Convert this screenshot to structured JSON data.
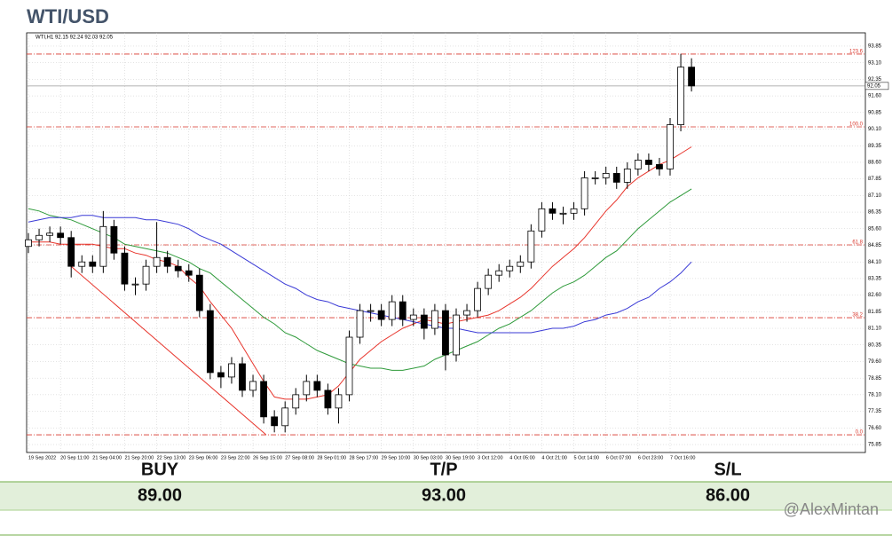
{
  "chart_data": {
    "type": "candlestick",
    "title": "WTI/USD",
    "subtitle": "WTI,H1  92.15 92.24 92.03 92.05",
    "categories": [
      "19 Sep 2022",
      null,
      null,
      "20 Sep 11:00",
      null,
      null,
      "21 Sep 04:00",
      null,
      null,
      "21 Sep 20:00",
      null,
      null,
      "22 Sep 13:00",
      null,
      null,
      "23 Sep 06:00",
      null,
      null,
      "23 Sep 22:00",
      null,
      null,
      "26 Sep 15:00",
      null,
      null,
      "27 Sep 08:00",
      null,
      null,
      "28 Sep 01:00",
      null,
      null,
      "28 Sep 17:00",
      null,
      null,
      "29 Sep 10:00",
      null,
      null,
      "30 Sep 03:00",
      null,
      null,
      "30 Sep 19:00",
      null,
      null,
      "3 Oct 12:00",
      null,
      null,
      "4 Oct 05:00",
      null,
      null,
      "4 Oct 21:00",
      null,
      null,
      "5 Oct 14:00",
      null,
      null,
      "6 Oct 07:00",
      null,
      null,
      "6 Oct 23:00",
      null,
      null,
      "7 Oct 16:00",
      null,
      null
    ],
    "open": [
      84.8,
      85.1,
      85.3,
      85.4,
      85.2,
      83.9,
      84.1,
      83.9,
      85.7,
      84.5,
      83.1,
      83.1,
      83.9,
      84.3,
      83.9,
      83.7,
      83.5,
      81.9,
      79.1,
      78.9,
      79.5,
      78.3,
      78.7,
      77.1,
      76.7,
      77.5,
      78.1,
      78.7,
      78.3,
      77.5,
      78.1,
      80.7,
      81.9,
      81.9,
      81.5,
      82.3,
      81.5,
      81.7,
      81.1,
      81.9,
      79.9,
      81.7,
      81.9,
      82.9,
      83.5,
      83.7,
      83.9,
      84.1,
      85.5,
      86.5,
      86.3,
      86.3,
      86.5,
      87.9,
      87.9,
      88.1,
      87.7,
      88.3,
      88.7,
      88.5,
      88.3,
      90.3,
      92.9
    ],
    "high": [
      85.4,
      85.6,
      85.7,
      85.7,
      85.5,
      84.4,
      84.4,
      86.4,
      86.0,
      84.8,
      83.4,
      84.2,
      85.9,
      84.6,
      84.2,
      84.0,
      83.8,
      82.2,
      79.4,
      79.8,
      79.8,
      79.0,
      79.0,
      77.4,
      77.8,
      78.4,
      79.0,
      79.0,
      78.6,
      78.4,
      81.0,
      82.2,
      82.2,
      82.2,
      82.6,
      82.6,
      82.0,
      82.0,
      82.2,
      82.2,
      82.0,
      82.2,
      83.2,
      83.8,
      84.0,
      84.2,
      84.4,
      85.8,
      86.8,
      86.8,
      86.6,
      86.8,
      88.2,
      88.2,
      88.4,
      88.4,
      88.6,
      89.0,
      89.0,
      88.8,
      90.6,
      93.5,
      93.3
    ],
    "low": [
      84.5,
      84.8,
      85.0,
      84.9,
      83.4,
      83.6,
      83.6,
      83.6,
      84.2,
      82.8,
      82.6,
      82.8,
      83.6,
      83.6,
      83.4,
      83.2,
      81.6,
      78.8,
      78.4,
      78.6,
      78.0,
      78.0,
      76.8,
      76.4,
      76.4,
      77.2,
      77.8,
      78.0,
      77.2,
      76.8,
      77.8,
      80.4,
      81.4,
      81.2,
      81.2,
      81.2,
      81.2,
      80.6,
      80.8,
      79.2,
      79.6,
      81.4,
      81.6,
      82.6,
      83.2,
      83.4,
      83.6,
      83.8,
      85.2,
      86.0,
      85.8,
      86.0,
      86.2,
      87.6,
      87.6,
      87.4,
      87.4,
      88.0,
      88.2,
      88.0,
      88.0,
      90.0,
      91.8
    ],
    "close": [
      85.1,
      85.3,
      85.4,
      85.2,
      83.9,
      84.1,
      83.9,
      85.7,
      84.5,
      83.1,
      83.1,
      83.9,
      84.3,
      83.9,
      83.7,
      83.5,
      81.9,
      79.1,
      78.9,
      79.5,
      78.3,
      78.7,
      77.1,
      76.7,
      77.5,
      78.1,
      78.7,
      78.3,
      77.5,
      78.1,
      80.7,
      81.9,
      81.9,
      81.5,
      82.3,
      81.5,
      81.7,
      81.1,
      81.9,
      79.9,
      81.7,
      81.9,
      82.9,
      83.5,
      83.7,
      83.9,
      84.1,
      85.5,
      86.5,
      86.3,
      86.3,
      86.5,
      87.9,
      87.9,
      88.1,
      87.7,
      88.3,
      88.7,
      88.5,
      88.3,
      90.3,
      92.9,
      92.05
    ],
    "series": [
      {
        "color": "#e8352c",
        "values": [
          85.0,
          85.0,
          85.0,
          84.9,
          84.9,
          84.9,
          84.9,
          84.8,
          84.7,
          84.7,
          84.5,
          84.4,
          84.2,
          84.1,
          83.9,
          83.4,
          83.0,
          82.3,
          81.7,
          81.1,
          80.3,
          79.5,
          78.7,
          78.0,
          77.9,
          77.9,
          77.9,
          78.0,
          78.1,
          78.5,
          79.1,
          79.7,
          80.1,
          80.5,
          80.8,
          81.1,
          81.3,
          81.5,
          81.4,
          81.3,
          81.4,
          81.5,
          81.6,
          81.7,
          81.9,
          82.2,
          82.5,
          82.9,
          83.4,
          83.9,
          84.3,
          84.7,
          85.2,
          85.8,
          86.4,
          86.9,
          87.5,
          87.9,
          88.2,
          88.5,
          88.7,
          89.0,
          89.3
        ]
      },
      {
        "color": "#2e9a3a",
        "values": [
          86.5,
          86.4,
          86.2,
          86.1,
          86.0,
          85.8,
          85.6,
          85.4,
          85.2,
          84.9,
          84.8,
          84.7,
          84.6,
          84.5,
          84.3,
          84.1,
          83.8,
          83.6,
          83.2,
          82.8,
          82.4,
          82.0,
          81.6,
          81.3,
          80.9,
          80.7,
          80.4,
          80.1,
          79.9,
          79.7,
          79.5,
          79.4,
          79.3,
          79.3,
          79.2,
          79.2,
          79.3,
          79.4,
          79.7,
          79.9,
          80.1,
          80.3,
          80.5,
          80.8,
          81.1,
          81.3,
          81.6,
          81.9,
          82.3,
          82.7,
          83.0,
          83.2,
          83.5,
          83.9,
          84.3,
          84.6,
          85.1,
          85.6,
          86.0,
          86.4,
          86.8,
          87.1,
          87.4
        ]
      },
      {
        "color": "#3a3ad6",
        "values": [
          85.9,
          86.0,
          86.1,
          86.1,
          86.1,
          86.2,
          86.2,
          86.1,
          86.1,
          86.1,
          86.1,
          86.0,
          86.0,
          85.9,
          85.8,
          85.6,
          85.3,
          85.1,
          84.9,
          84.6,
          84.3,
          84.0,
          83.7,
          83.4,
          83.1,
          82.9,
          82.6,
          82.4,
          82.3,
          82.1,
          82.0,
          81.9,
          81.8,
          81.7,
          81.6,
          81.5,
          81.4,
          81.3,
          81.2,
          81.1,
          81.1,
          81.0,
          80.9,
          80.9,
          80.9,
          80.9,
          80.9,
          80.9,
          81.0,
          81.1,
          81.1,
          81.2,
          81.4,
          81.5,
          81.7,
          81.8,
          82.0,
          82.3,
          82.5,
          82.9,
          83.2,
          83.6,
          84.1
        ]
      }
    ],
    "fib": {
      "levels": [
        "123.6",
        "100.0",
        "61.8",
        "38.2",
        "0.0"
      ],
      "prices": [
        93.49,
        90.2,
        84.87,
        81.58,
        76.29
      ],
      "color": "#d9362b"
    },
    "trendline": {
      "x": [
        4,
        22.2
      ],
      "y": [
        83.9,
        76.3
      ],
      "color": "#e8352c"
    },
    "last_price": 92.05,
    "ylim": [
      75.49,
      94.45
    ],
    "yticks": [
      93.85,
      {
        "value": 93.1,
        "label": "93.10"
      },
      92.35,
      {
        "value": 91.6,
        "label": "91.60"
      },
      90.85,
      {
        "value": 90.1,
        "label": "90.10"
      },
      89.35,
      {
        "value": 88.6,
        "label": "88.60"
      },
      87.85,
      {
        "value": 87.1,
        "label": "87.10"
      },
      86.35,
      {
        "value": 85.6,
        "label": "85.60"
      },
      84.85,
      {
        "value": 84.1,
        "label": "84.10"
      },
      83.35,
      {
        "value": 82.6,
        "label": "82.60"
      },
      81.85,
      {
        "value": 81.1,
        "label": "81.10"
      },
      80.35,
      {
        "value": 79.6,
        "label": "79.60"
      },
      78.85,
      {
        "value": 78.1,
        "label": "78.10"
      },
      77.35,
      {
        "value": 76.6,
        "label": "76.60"
      },
      75.85
    ],
    "grid": true
  },
  "trade": {
    "headers": [
      "BUY",
      "T/P",
      "S/L"
    ],
    "values": [
      "89.00",
      "93.00",
      "86.00"
    ]
  },
  "watermark": "@AlexMintan"
}
